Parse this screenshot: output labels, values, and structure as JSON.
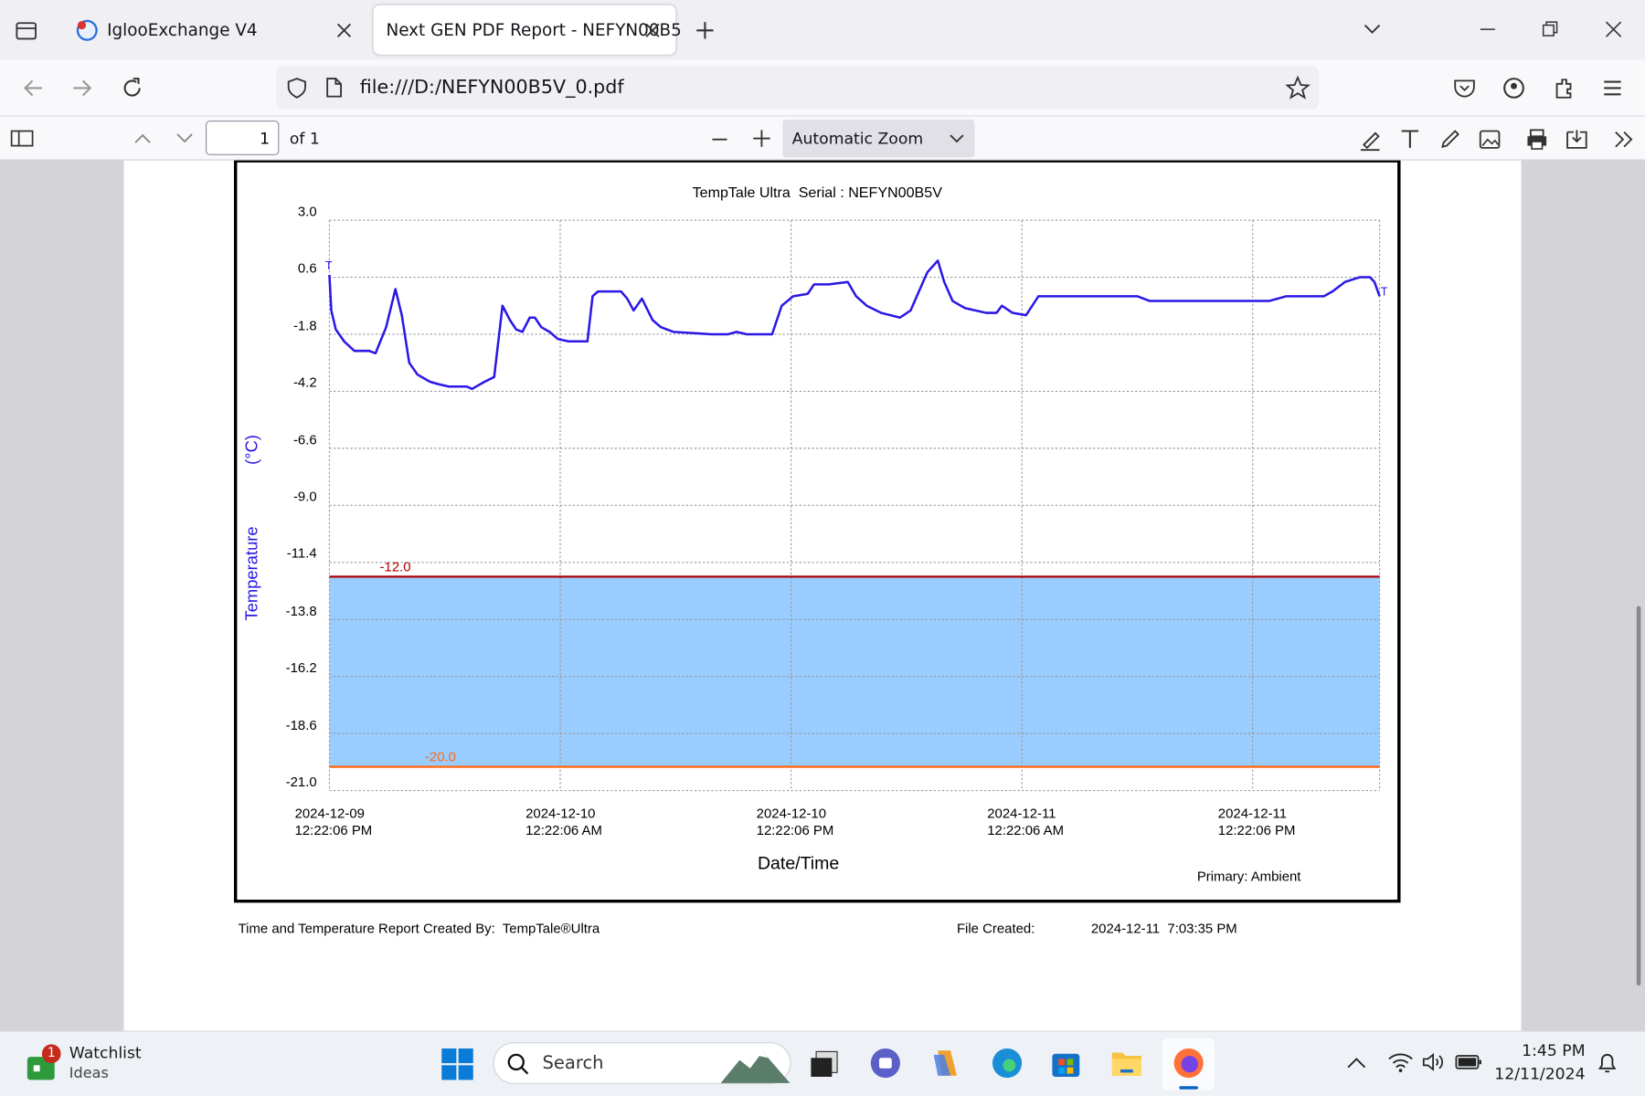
{
  "browser": {
    "tabs": [
      "IglooExchange V4",
      "Next GEN PDF Report - NEFYN00B5"
    ],
    "url": "file:///D:/NEFYN00B5V_0.pdf"
  },
  "pdf_toolbar": {
    "page": "1",
    "page_count": "of 1",
    "zoom": "Automatic Zoom"
  },
  "chart_data": {
    "type": "line",
    "title": "TempTale Ultra  Serial : NEFYN00B5V",
    "ylabel": "Temperature",
    "yunit": "(°C)",
    "xlabel": "Date/Time",
    "annotation": "Primary: Ambient",
    "trip_markers": [
      "T",
      "T"
    ],
    "color": "#2a17e6",
    "grid": true,
    "ylim": [
      -21,
      3
    ],
    "yticks": [
      {
        "value": 3,
        "label": "3.0"
      },
      0.6,
      -1.8,
      -4.2,
      -6.6,
      {
        "value": -9,
        "label": "-9.0"
      },
      -11.4,
      -13.8,
      -16.2,
      -18.6,
      {
        "value": -21,
        "label": "-21.0"
      }
    ],
    "xlim": [
      "2024-12-09T12:22:06",
      "2024-12-11T18:58"
    ],
    "xticks": [
      {
        "value": "2024-12-09T12:22:06",
        "label": "2024-12-09\n12:22:06 PM"
      },
      {
        "value": "2024-12-10T00:22:06",
        "label": "2024-12-10\n12:22:06 AM"
      },
      {
        "value": "2024-12-10T12:22:06",
        "label": "2024-12-10\n12:22:06 PM"
      },
      {
        "value": "2024-12-11T00:22:06",
        "label": "2024-12-11\n12:22:06 AM"
      },
      {
        "value": "2024-12-11T12:22:06",
        "label": "2024-12-11\n12:22:06 PM"
      }
    ],
    "thresholds": [
      {
        "value": -12,
        "label": "-12.0",
        "color": "#b00000"
      },
      {
        "value": -20,
        "label": "-20.0",
        "color": "#ff6a13"
      }
    ],
    "band_color": "#99ccff",
    "x": [
      "2024-12-09T12:22",
      "2024-12-09T12:28",
      "2024-12-09T12:42",
      "2024-12-09T13:08",
      "2024-12-09T13:40",
      "2024-12-09T14:26",
      "2024-12-09T14:46",
      "2024-12-09T15:19",
      "2024-12-09T15:48",
      "2024-12-09T16:08",
      "2024-12-09T16:31",
      "2024-12-09T16:57",
      "2024-12-09T17:36",
      "2024-12-09T18:02",
      "2024-12-09T18:35",
      "2024-12-09T19:31",
      "2024-12-09T19:47",
      "2024-12-09T20:26",
      "2024-12-09T20:56",
      "2024-12-09T21:22",
      "2024-12-09T21:45",
      "2024-12-09T22:05",
      "2024-12-09T22:24",
      "2024-12-09T22:47",
      "2024-12-09T23:03",
      "2024-12-09T23:23",
      "2024-12-09T23:49",
      "2024-12-10T00:15",
      "2024-12-10T00:48",
      "2024-12-10T01:47",
      "2024-12-10T02:03",
      "2024-12-10T02:20",
      "2024-12-10T02:53",
      "2024-12-10T03:32",
      "2024-12-10T03:51",
      "2024-12-10T04:11",
      "2024-12-10T04:37",
      "2024-12-10T05:10",
      "2024-12-10T05:36",
      "2024-12-10T06:15",
      "2024-12-10T08:13",
      "2024-12-10T09:06",
      "2024-12-10T09:32",
      "2024-12-10T10:04",
      "2024-12-10T11:23",
      "2024-12-10T11:53",
      "2024-12-10T12:29",
      "2024-12-10T13:14",
      "2024-12-10T13:34",
      "2024-12-10T14:20",
      "2024-12-10T15:19",
      "2024-12-10T15:45",
      "2024-12-10T16:18",
      "2024-12-10T17:03",
      "2024-12-10T18:02",
      "2024-12-10T18:35",
      "2024-12-10T19:01",
      "2024-12-10T19:27",
      "2024-12-10T20:00",
      "2024-12-10T20:20",
      "2024-12-10T20:46",
      "2024-12-10T21:25",
      "2024-12-10T22:31",
      "2024-12-10T23:03",
      "2024-12-10T23:20",
      "2024-12-10T23:53",
      "2024-12-11T00:35",
      "2024-12-11T01:14",
      "2024-12-11T04:24",
      "2024-12-11T05:43",
      "2024-12-11T06:22",
      "2024-12-11T07:01",
      "2024-12-11T10:11",
      "2024-12-11T11:23",
      "2024-12-11T12:09",
      "2024-12-11T13:14",
      "2024-12-11T14:07",
      "2024-12-11T16:04",
      "2024-12-11T16:31",
      "2024-12-11T17:10",
      "2024-12-11T17:56",
      "2024-12-11T18:28",
      "2024-12-11T18:42",
      "2024-12-11T18:58"
    ],
    "values": [
      0.7,
      -0.8,
      -1.6,
      -2.1,
      -2.5,
      -2.5,
      -2.6,
      -1.5,
      0.1,
      -1.0,
      -3.0,
      -3.5,
      -3.8,
      -3.9,
      -4.0,
      -4.0,
      -4.1,
      -3.8,
      -3.6,
      -0.6,
      -1.2,
      -1.6,
      -1.7,
      -1.1,
      -1.1,
      -1.5,
      -1.7,
      -2.0,
      -2.1,
      -2.1,
      -0.2,
      0.0,
      0.0,
      0.0,
      -0.3,
      -0.8,
      -0.3,
      -1.2,
      -1.5,
      -1.7,
      -1.8,
      -1.8,
      -1.7,
      -1.8,
      -1.8,
      -0.6,
      -0.2,
      -0.1,
      0.3,
      0.3,
      0.4,
      -0.2,
      -0.6,
      -0.9,
      -1.1,
      -0.8,
      0.0,
      0.8,
      1.3,
      0.4,
      -0.4,
      -0.7,
      -0.9,
      -0.9,
      -0.6,
      -0.9,
      -1.0,
      -0.2,
      -0.2,
      -0.2,
      -0.2,
      -0.4,
      -0.4,
      -0.4,
      -0.4,
      -0.4,
      -0.2,
      -0.2,
      0.0,
      0.4,
      0.6,
      0.6,
      0.4,
      -0.2
    ]
  },
  "report_footer": {
    "created_by": "Time and Temperature Report Created By:  TempTale®Ultra",
    "file_created_label": "File Created:",
    "file_created": "2024-12-11  7:03:35 PM"
  },
  "taskbar": {
    "widget_title": "Watchlist",
    "widget_subtitle": "Ideas",
    "badge": "1",
    "search": "Search",
    "time": "1:45 PM",
    "date": "12/11/2024"
  }
}
